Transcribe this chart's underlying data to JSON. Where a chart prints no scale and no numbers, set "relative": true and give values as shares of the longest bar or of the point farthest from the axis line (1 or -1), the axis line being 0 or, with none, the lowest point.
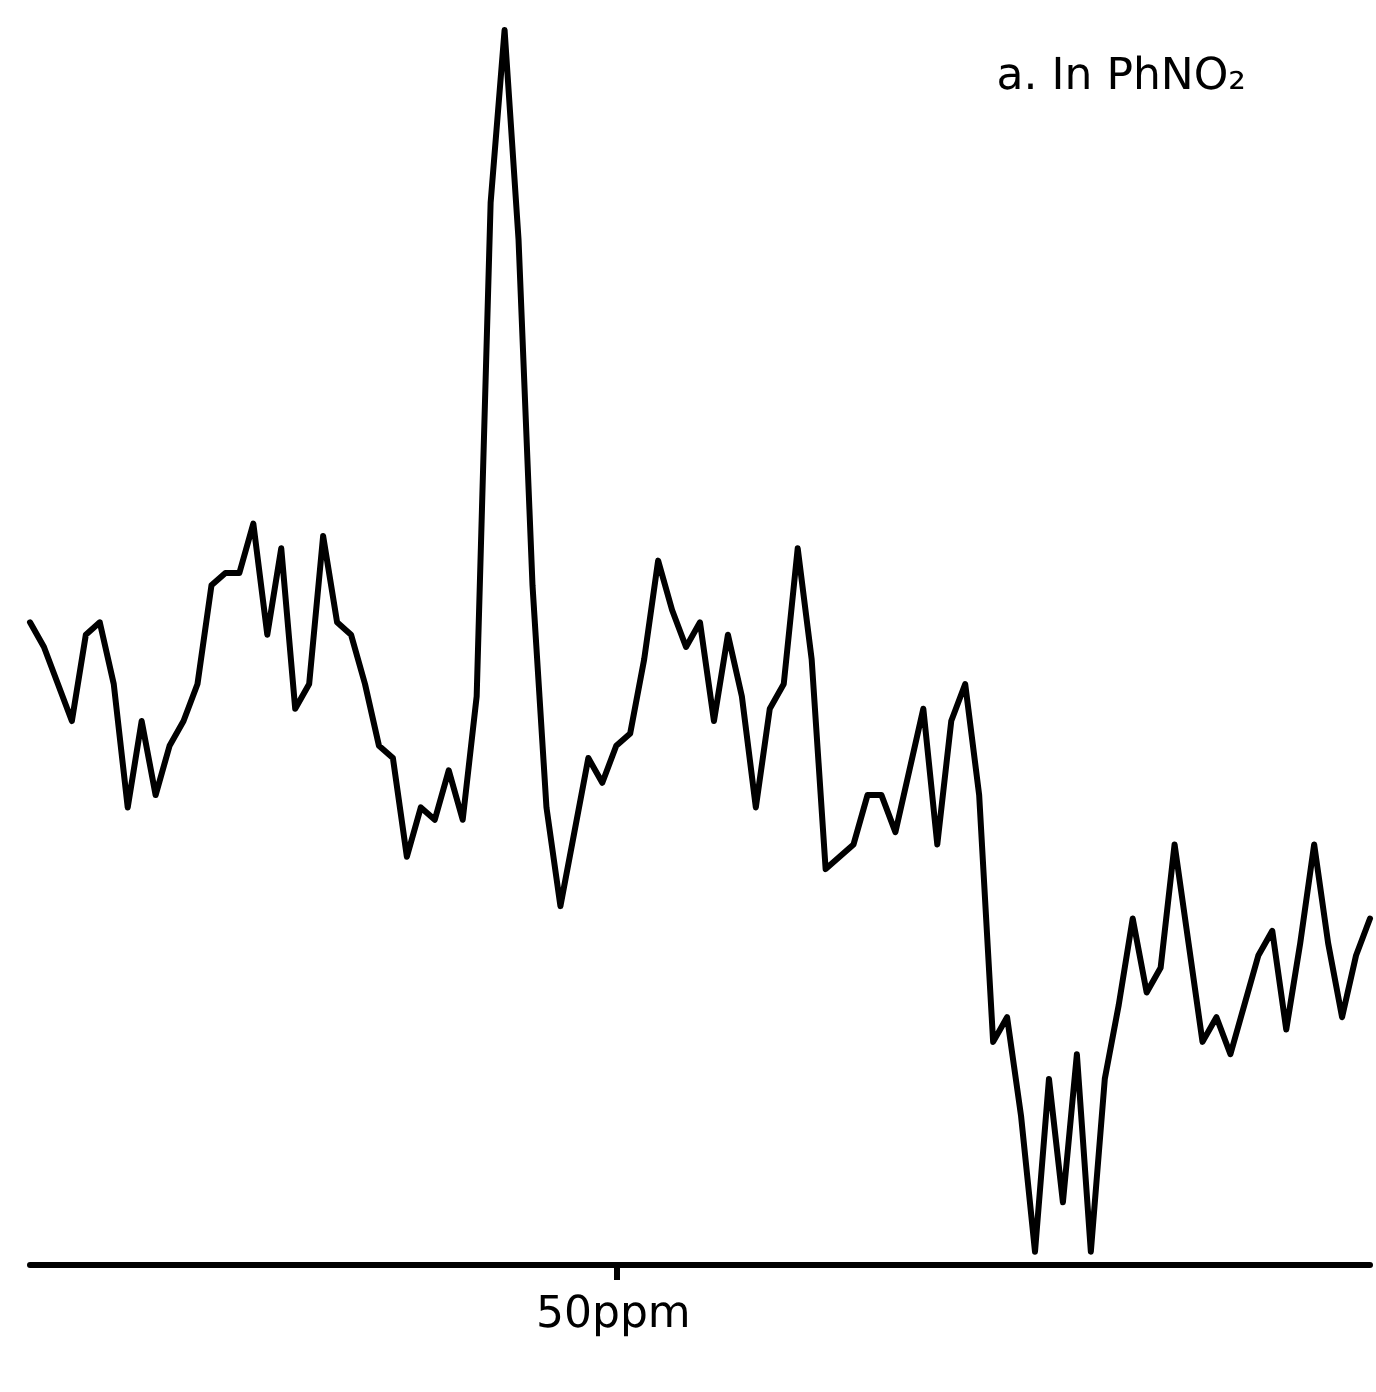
{
  "chart_data": {
    "type": "line",
    "title": "a. In PhNO₂",
    "relative": true,
    "annotations": [
      "50ppm"
    ],
    "categories": [
      null,
      null,
      null,
      null,
      null,
      null,
      null,
      null,
      null,
      null,
      null,
      null,
      null,
      null,
      null,
      null,
      null,
      null,
      null,
      null,
      null,
      null,
      null,
      null,
      null,
      null,
      null,
      null,
      null,
      null,
      null,
      null,
      null,
      null,
      null,
      null,
      null,
      null,
      null,
      null,
      null,
      null,
      null,
      null,
      null,
      null,
      null,
      null,
      null,
      null,
      null,
      null,
      null,
      null,
      null,
      null,
      null,
      null,
      null,
      null,
      null,
      null,
      null,
      null,
      null,
      null,
      null,
      null,
      null,
      null,
      null,
      null,
      null,
      null,
      null,
      null,
      null,
      null,
      null,
      null,
      null,
      null,
      null,
      null,
      null,
      null,
      null,
      null,
      null,
      null,
      null,
      null,
      null,
      null,
      null,
      null,
      null
    ],
    "series": [
      {
        "color": "#000000",
        "values": [
          0.52,
          0.5,
          0.47,
          0.44,
          0.51,
          0.52,
          0.47,
          0.37,
          0.44,
          0.38,
          0.42,
          0.44,
          0.47,
          0.55,
          0.56,
          0.56,
          0.6,
          0.51,
          0.58,
          0.45,
          0.47,
          0.59,
          0.52,
          0.51,
          0.47,
          0.42,
          0.41,
          0.33,
          0.37,
          0.36,
          0.4,
          0.36,
          0.46,
          0.86,
          1,
          0.83,
          0.55,
          0.37,
          0.29,
          0.35,
          0.41,
          0.39,
          0.42,
          0.43,
          0.49,
          0.57,
          0.53,
          0.5,
          0.52,
          0.44,
          0.51,
          0.46,
          0.37,
          0.45,
          0.47,
          0.58,
          0.49,
          0.32,
          0.33,
          0.34,
          0.38,
          0.38,
          0.35,
          0.4,
          0.45,
          0.34,
          0.44,
          0.47,
          0.38,
          0.18,
          0.2,
          0.12,
          0.01,
          0.15,
          0.05,
          0.17,
          0.01,
          0.15,
          0.21,
          0.28,
          0.22,
          0.24,
          0.34,
          0.26,
          0.18,
          0.2,
          0.17,
          0.21,
          0.25,
          0.27,
          0.19,
          0.26,
          0.34,
          0.26,
          0.2,
          0.25,
          0.28
        ]
      }
    ]
  }
}
